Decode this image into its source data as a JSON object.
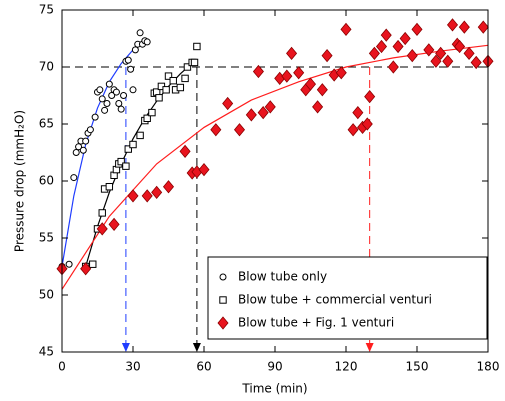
{
  "chart_data": {
    "type": "scatter",
    "x_label": "Time (min)",
    "y_label": "Pressure drop (mmH₂O)",
    "xlim": [
      0,
      180
    ],
    "xticks": [
      0,
      30,
      60,
      90,
      120,
      150,
      180
    ],
    "ylim": [
      45,
      75
    ],
    "yticks": [
      45,
      50,
      55,
      60,
      65,
      70,
      75
    ],
    "series": [
      {
        "name": "Blow tube only",
        "marker": "circle",
        "color": "#000000",
        "x": [
          0,
          3,
          5,
          6,
          7,
          8,
          9,
          10,
          11,
          12,
          14,
          15,
          16,
          17,
          18,
          19,
          20,
          21,
          22,
          23,
          24,
          25,
          26,
          27,
          28,
          29,
          30,
          31,
          32,
          33,
          34,
          35,
          36
        ],
        "values": [
          52.5,
          52.7,
          60.3,
          62.5,
          63,
          63.5,
          62.7,
          63.5,
          64.2,
          64.5,
          65.6,
          67.8,
          68,
          67.2,
          66.2,
          66.8,
          68.5,
          67.5,
          68,
          67.8,
          66.8,
          66.3,
          67.5,
          70.5,
          70.6,
          69.8,
          68,
          71.5,
          72,
          73,
          72,
          72.3,
          72.2
        ]
      },
      {
        "name": "Blow tube + commercial  venturi",
        "marker": "square",
        "color": "#000000",
        "x": [
          10,
          13,
          15,
          17,
          18,
          20,
          22,
          23,
          24,
          25,
          27,
          28,
          30,
          33,
          35,
          36,
          38,
          39,
          40,
          41,
          42,
          44,
          45,
          47,
          48,
          50,
          52,
          53,
          55,
          56,
          57
        ],
        "values": [
          52.5,
          52.7,
          55.8,
          57.2,
          59.3,
          59.5,
          60.5,
          61,
          61.5,
          61.7,
          61.3,
          62.8,
          63.2,
          64,
          65.3,
          65.5,
          66,
          67.7,
          67.8,
          67.3,
          68.3,
          68,
          69.2,
          68.8,
          68,
          68.2,
          69,
          70,
          70.4,
          70.4,
          71.8
        ]
      },
      {
        "name": "Blow tube + Fig. 1 venturi",
        "marker": "diamond",
        "color": "#e8141e",
        "x": [
          0,
          10,
          17,
          22,
          30,
          36,
          40,
          45,
          52,
          55,
          57,
          60,
          65,
          70,
          75,
          80,
          83,
          85,
          88,
          92,
          95,
          97,
          100,
          103,
          105,
          108,
          110,
          112,
          115,
          118,
          120,
          123,
          125,
          127,
          129,
          130,
          132,
          135,
          137,
          140,
          142,
          145,
          148,
          150,
          155,
          158,
          160,
          163,
          165,
          167,
          168,
          170,
          172,
          175,
          178,
          180
        ],
        "values": [
          52.3,
          52.3,
          55.8,
          56.2,
          58.7,
          58.7,
          59,
          59.5,
          62.6,
          60.7,
          60.8,
          61,
          64.5,
          66.8,
          64.5,
          65.8,
          69.6,
          66,
          66.5,
          69,
          69.2,
          71.2,
          69.5,
          68,
          68.5,
          66.5,
          68,
          71,
          69.3,
          69.5,
          73.3,
          64.5,
          66,
          64.7,
          65,
          67.4,
          71.2,
          71.8,
          72.8,
          70,
          71.8,
          72.5,
          71,
          73.3,
          71.5,
          70.5,
          71.2,
          70.5,
          73.7,
          72,
          71.8,
          73.5,
          71.2,
          70.4,
          73.5,
          70.5
        ]
      }
    ],
    "fits": [
      {
        "color": "#1f3cff",
        "x": [
          0,
          5,
          10,
          15,
          20,
          25,
          30,
          36
        ],
        "values": [
          52.5,
          58.7,
          63.2,
          66.4,
          68.7,
          70.3,
          71.5,
          72.5
        ]
      },
      {
        "color": "#000000",
        "x": [
          10,
          15,
          20,
          25,
          30,
          35,
          40,
          45,
          50,
          57
        ],
        "values": [
          52.5,
          56.0,
          59.0,
          61.5,
          63.7,
          65.5,
          67.0,
          68.3,
          69.4,
          70.7
        ]
      },
      {
        "color": "#ff1e1e",
        "x": [
          0,
          20,
          40,
          60,
          80,
          100,
          120,
          140,
          160,
          180
        ],
        "values": [
          50.5,
          56.9,
          61.5,
          64.7,
          67.1,
          68.7,
          70.0,
          70.8,
          71.4,
          71.9
        ]
      }
    ],
    "hline": 70,
    "vlines": [
      {
        "x": 27,
        "color": "#1f3cff"
      },
      {
        "x": 57,
        "color": "#000000"
      },
      {
        "x": 130,
        "color": "#ff1e1e"
      }
    ]
  }
}
